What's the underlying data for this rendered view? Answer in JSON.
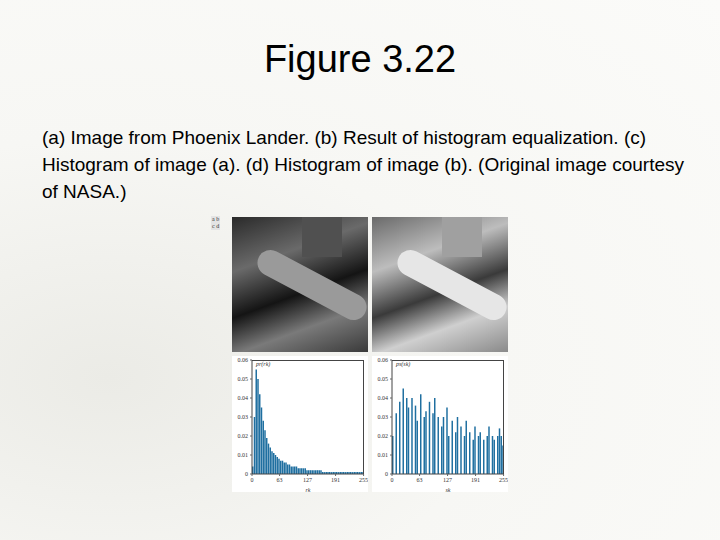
{
  "slide": {
    "title": "Figure 3.22",
    "caption": "(a) Image from Phoenix Lander. (b) Result of histogram equalization. (c) Histogram of image (a). (d) Histogram of image (b). (Original image courtesy of NASA.)",
    "panel_labels": [
      "a",
      "b",
      "c",
      "d"
    ]
  },
  "chart_data": [
    {
      "type": "histogram",
      "ylabel": "pr(rk)",
      "xlabel": "rk",
      "bins": [
        0,
        4,
        8,
        12,
        16,
        20,
        24,
        28,
        32,
        36,
        40,
        44,
        48,
        52,
        56,
        60,
        64,
        68,
        72,
        76,
        80,
        84,
        88,
        92,
        96,
        100,
        104,
        108,
        112,
        116,
        120,
        124,
        128,
        132,
        136,
        140,
        144,
        148,
        152,
        156,
        160,
        164,
        168,
        172,
        176,
        180,
        184,
        188,
        192,
        196,
        200,
        204,
        208,
        212,
        216,
        220,
        224,
        228,
        232,
        236,
        240,
        244,
        248,
        252,
        256
      ],
      "values": [
        0.004,
        0.03,
        0.055,
        0.05,
        0.042,
        0.035,
        0.028,
        0.023,
        0.019,
        0.016,
        0.014,
        0.012,
        0.011,
        0.01,
        0.009,
        0.008,
        0.007,
        0.007,
        0.006,
        0.006,
        0.005,
        0.005,
        0.004,
        0.004,
        0.004,
        0.004,
        0.003,
        0.003,
        0.003,
        0.003,
        0.003,
        0.002,
        0.002,
        0.002,
        0.002,
        0.002,
        0.002,
        0.002,
        0.002,
        0.002,
        0.001,
        0.001,
        0.001,
        0.001,
        0.001,
        0.001,
        0.001,
        0.001,
        0.001,
        0.001,
        0.001,
        0.001,
        0.001,
        0.001,
        0.001,
        0.001,
        0.001,
        0.001,
        0.001,
        0.001,
        0.001,
        0.001,
        0.001,
        0.001
      ],
      "color": "#1f6fa0",
      "xlim": [
        0,
        256
      ],
      "ylim": [
        0,
        0.06
      ],
      "xticks": [
        0,
        63,
        127,
        191,
        255
      ],
      "yticks": [
        0,
        0.01,
        0.02,
        0.03,
        0.04,
        0.05,
        0.06
      ]
    },
    {
      "type": "histogram",
      "ylabel": "ps(sk)",
      "xlabel": "sk",
      "bins": [
        0,
        4,
        8,
        12,
        16,
        20,
        24,
        28,
        32,
        36,
        40,
        44,
        48,
        52,
        56,
        60,
        64,
        68,
        72,
        76,
        80,
        84,
        88,
        92,
        96,
        100,
        104,
        108,
        112,
        116,
        120,
        124,
        128,
        132,
        136,
        140,
        144,
        148,
        152,
        156,
        160,
        164,
        168,
        172,
        176,
        180,
        184,
        188,
        192,
        196,
        200,
        204,
        208,
        212,
        216,
        220,
        224,
        228,
        232,
        236,
        240,
        244,
        248,
        252,
        256
      ],
      "values": [
        0.02,
        0,
        0.032,
        0,
        0.038,
        0,
        0.045,
        0,
        0.04,
        0.035,
        0,
        0.04,
        0,
        0.036,
        0.028,
        0,
        0.042,
        0,
        0.03,
        0.033,
        0,
        0.038,
        0,
        0.032,
        0.04,
        0,
        0.03,
        0,
        0.025,
        0.03,
        0,
        0.035,
        0.02,
        0,
        0.028,
        0,
        0.022,
        0.03,
        0,
        0.025,
        0,
        0.02,
        0.028,
        0,
        0.022,
        0,
        0.018,
        0.025,
        0,
        0.02,
        0.022,
        0,
        0.018,
        0,
        0.02,
        0.025,
        0,
        0.02,
        0.018,
        0,
        0.02,
        0.024,
        0.02,
        0.015
      ],
      "color": "#1f6fa0",
      "xlim": [
        0,
        256
      ],
      "ylim": [
        0,
        0.06
      ],
      "xticks": [
        0,
        63,
        127,
        191,
        255
      ],
      "yticks": [
        0,
        0.01,
        0.02,
        0.03,
        0.04,
        0.05,
        0.06
      ]
    }
  ]
}
